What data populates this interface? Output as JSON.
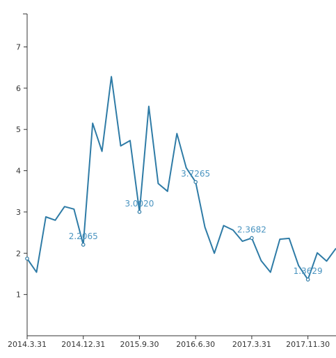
{
  "chart_data": {
    "type": "line",
    "series_color": "#2e7ba6",
    "label_color": "#4a94c0",
    "ylim": [
      0,
      7.8
    ],
    "y_ticks": [
      1,
      2,
      3,
      4,
      5,
      6,
      7
    ],
    "x_ticks": [
      "2014.3.31",
      "2014.12.31",
      "2015.9.30",
      "2016.6.30",
      "2017.3.31",
      "2017.11.30"
    ],
    "x_tick_indices": [
      0,
      6,
      12,
      18,
      24,
      30
    ],
    "values": [
      1.87,
      1.54,
      2.88,
      2.8,
      3.13,
      3.07,
      2.2065,
      5.15,
      4.47,
      6.28,
      4.6,
      4.73,
      3.002,
      5.56,
      3.69,
      3.5,
      4.9,
      4.07,
      3.7265,
      2.63,
      2.0,
      2.67,
      2.56,
      2.29,
      2.3682,
      1.82,
      1.54,
      2.34,
      2.36,
      1.7,
      1.3629,
      2.01,
      1.81,
      2.12
    ],
    "labeled_points": [
      {
        "index": 6,
        "label": "2.2065"
      },
      {
        "index": 12,
        "label": "3.0020"
      },
      {
        "index": 18,
        "label": "3.7265"
      },
      {
        "index": 24,
        "label": "2.3682"
      },
      {
        "index": 30,
        "label": "1.3629"
      }
    ],
    "marker_indices": [
      0,
      6,
      12,
      18,
      24,
      30
    ]
  }
}
